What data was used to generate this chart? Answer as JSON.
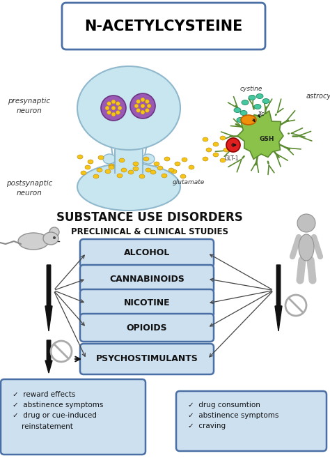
{
  "title": "N-ACETYLCYSTEINE",
  "title_box_color": "#ffffff",
  "title_box_edge": "#4a6fa5",
  "bg_color": "#ffffff",
  "substance_title": "SUBSTANCE USE DISORDERS",
  "subtitle": "PRECLINICAL & CLINICAL STUDIES",
  "drugs": [
    "ALCOHOL",
    "CANNABINOIDS",
    "NICOTINE",
    "OPIOIDS",
    "PSYCHOSTIMULANTS"
  ],
  "drug_box_fill": "#cde0f0",
  "drug_box_edge": "#4a6fa5",
  "left_box_text": "✓  reward effects\n✓  abstinence symptoms\n✓  drug or cue-induced\n    reinstatement",
  "right_box_text": "✓  drug consumtion\n✓  abstinence symptoms\n✓  craving",
  "info_box_fill": "#cde0f0",
  "info_box_edge": "#4a6fa5",
  "neuron_fill": "#c8e6f0",
  "neuron_edge": "#90b8cc",
  "astrocyte_fill": "#8bc34a",
  "vesicle_fill": "#f5c518",
  "vesicle_edge": "#b8860b",
  "presynaptic_label": "presynaptic\nneuron",
  "postsynaptic_label": "postsynaptic\nneuron",
  "cystine_label": "cystine",
  "astrocyte_label": "astrocyte",
  "glutamate_label": "glutamate",
  "gsh_label": "GSH",
  "glt1_label": "GLT-1"
}
